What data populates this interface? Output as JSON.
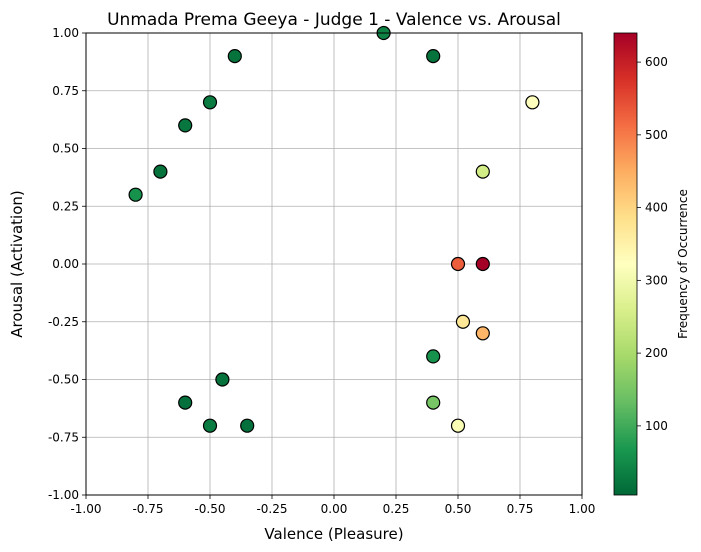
{
  "chart_data": {
    "type": "scatter",
    "title": "Unmada Prema Geeya - Judge 1 - Valence vs. Arousal",
    "xlabel": "Valence (Pleasure)",
    "ylabel": "Arousal (Activation)",
    "xlim": [
      -1.0,
      1.0
    ],
    "ylim": [
      -1.0,
      1.0
    ],
    "xticks": [
      "-1.00",
      "-0.75",
      "-0.50",
      "-0.25",
      "0.00",
      "0.25",
      "0.50",
      "0.75",
      "1.00"
    ],
    "yticks": [
      "-1.00",
      "-0.75",
      "-0.50",
      "-0.25",
      "0.00",
      "0.25",
      "0.50",
      "0.75",
      "1.00"
    ],
    "grid": true,
    "colorbar": {
      "label": "Frequency of Occurrence",
      "colormap": "RdYlGn_r",
      "range": [
        5,
        640
      ],
      "ticks": [
        "100",
        "200",
        "300",
        "400",
        "500",
        "600"
      ]
    },
    "points": [
      {
        "x": -0.8,
        "y": 0.3,
        "value": 60
      },
      {
        "x": -0.7,
        "y": 0.4,
        "value": 20
      },
      {
        "x": -0.6,
        "y": 0.6,
        "value": 25
      },
      {
        "x": -0.5,
        "y": 0.7,
        "value": 30
      },
      {
        "x": -0.4,
        "y": 0.9,
        "value": 20
      },
      {
        "x": 0.2,
        "y": 1.0,
        "value": 40
      },
      {
        "x": 0.4,
        "y": 0.9,
        "value": 20
      },
      {
        "x": 0.8,
        "y": 0.7,
        "value": 320
      },
      {
        "x": 0.6,
        "y": 0.4,
        "value": 250
      },
      {
        "x": 0.5,
        "y": 0.0,
        "value": 530
      },
      {
        "x": 0.6,
        "y": 0.0,
        "value": 640
      },
      {
        "x": 0.52,
        "y": -0.25,
        "value": 370
      },
      {
        "x": 0.6,
        "y": -0.3,
        "value": 440
      },
      {
        "x": 0.4,
        "y": -0.4,
        "value": 60
      },
      {
        "x": 0.4,
        "y": -0.6,
        "value": 150
      },
      {
        "x": 0.5,
        "y": -0.7,
        "value": 310
      },
      {
        "x": -0.45,
        "y": -0.5,
        "value": 20
      },
      {
        "x": -0.6,
        "y": -0.6,
        "value": 15
      },
      {
        "x": -0.5,
        "y": -0.7,
        "value": 30
      },
      {
        "x": -0.35,
        "y": -0.7,
        "value": 15
      }
    ]
  }
}
